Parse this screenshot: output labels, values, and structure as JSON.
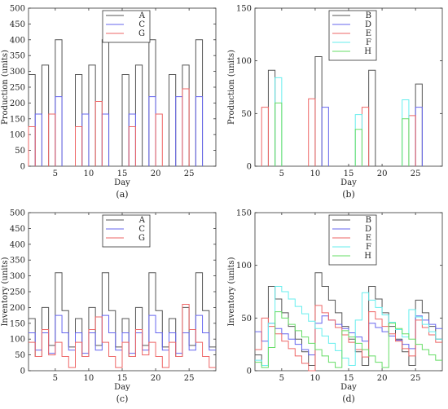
{
  "colors": {
    "A": "#555555",
    "B": "#555555",
    "C": "#6666ee",
    "D": "#6666ee",
    "G": "#ee6666",
    "E": "#ee6666",
    "F": "#66eeee",
    "H": "#66dd66"
  },
  "chart_data": [
    {
      "id": "a",
      "type": "bar",
      "panel_label": "(a)",
      "xlabel": "Day",
      "ylabel": "Production (units)",
      "xlim": [
        1,
        29
      ],
      "ylim": [
        0,
        500
      ],
      "xticks": [
        5,
        10,
        15,
        20,
        25
      ],
      "yticks": [
        0,
        50,
        100,
        150,
        200,
        250,
        300,
        350,
        400,
        450,
        500
      ],
      "legend": "top-center",
      "series": [
        {
          "name": "A",
          "values": [
            290,
            0,
            320,
            0,
            400,
            0,
            0,
            290,
            0,
            320,
            0,
            400,
            0,
            0,
            290,
            0,
            320,
            0,
            400,
            0,
            0,
            290,
            0,
            320,
            0,
            400,
            0,
            0
          ]
        },
        {
          "name": "C",
          "values": [
            0,
            165,
            0,
            0,
            220,
            0,
            0,
            0,
            165,
            0,
            0,
            165,
            0,
            0,
            0,
            165,
            0,
            0,
            220,
            0,
            0,
            0,
            220,
            0,
            0,
            220,
            0,
            0
          ]
        },
        {
          "name": "G",
          "values": [
            125,
            0,
            0,
            165,
            0,
            0,
            0,
            125,
            0,
            0,
            205,
            0,
            0,
            0,
            0,
            125,
            0,
            0,
            0,
            165,
            0,
            0,
            0,
            245,
            0,
            0,
            0,
            0
          ]
        }
      ]
    },
    {
      "id": "b",
      "type": "bar",
      "panel_label": "(b)",
      "xlabel": "Day",
      "ylabel": "Production (units)",
      "xlim": [
        1,
        29
      ],
      "ylim": [
        0,
        150
      ],
      "xticks": [
        5,
        10,
        15,
        20,
        25
      ],
      "yticks": [
        0,
        50,
        100,
        150
      ],
      "legend": "top-center",
      "series": [
        {
          "name": "B",
          "values": [
            0,
            0,
            91,
            0,
            0,
            0,
            0,
            0,
            0,
            104,
            0,
            0,
            0,
            0,
            0,
            0,
            0,
            91,
            0,
            0,
            0,
            0,
            0,
            0,
            78,
            0,
            0,
            0
          ]
        },
        {
          "name": "D",
          "values": [
            0,
            0,
            0,
            0,
            0,
            0,
            0,
            0,
            0,
            0,
            56,
            0,
            0,
            0,
            0,
            0,
            0,
            0,
            0,
            0,
            0,
            0,
            0,
            0,
            56,
            0,
            0,
            0
          ]
        },
        {
          "name": "E",
          "values": [
            0,
            56,
            0,
            0,
            0,
            0,
            0,
            0,
            64,
            0,
            0,
            0,
            0,
            0,
            0,
            0,
            56,
            0,
            0,
            0,
            0,
            0,
            0,
            48,
            0,
            0,
            0,
            0
          ]
        },
        {
          "name": "F",
          "values": [
            0,
            0,
            0,
            84,
            0,
            0,
            0,
            0,
            0,
            0,
            0,
            0,
            0,
            0,
            0,
            49,
            0,
            0,
            0,
            0,
            0,
            0,
            63,
            0,
            0,
            0,
            0,
            0
          ]
        },
        {
          "name": "H",
          "values": [
            0,
            0,
            0,
            60,
            0,
            0,
            0,
            0,
            0,
            0,
            0,
            0,
            0,
            0,
            0,
            35,
            0,
            0,
            0,
            0,
            0,
            0,
            45,
            0,
            0,
            0,
            0,
            0
          ]
        }
      ]
    },
    {
      "id": "c",
      "type": "line",
      "panel_label": "(c)",
      "xlabel": "Day",
      "ylabel": "Inventory (units)",
      "xlim": [
        1,
        29
      ],
      "ylim": [
        0,
        500
      ],
      "xticks": [
        5,
        10,
        15,
        20,
        25
      ],
      "yticks": [
        0,
        50,
        100,
        150,
        200,
        250,
        300,
        350,
        400,
        450,
        500
      ],
      "legend": "top-center",
      "series": [
        {
          "name": "A",
          "values": [
            165,
            45,
            200,
            80,
            310,
            190,
            75,
            165,
            45,
            200,
            80,
            310,
            190,
            75,
            165,
            45,
            200,
            80,
            310,
            190,
            75,
            165,
            45,
            200,
            80,
            310,
            190,
            75
          ]
        },
        {
          "name": "C",
          "values": [
            120,
            65,
            120,
            55,
            175,
            120,
            65,
            120,
            55,
            120,
            65,
            175,
            120,
            65,
            120,
            55,
            120,
            65,
            175,
            120,
            65,
            120,
            55,
            120,
            65,
            175,
            120,
            65
          ]
        },
        {
          "name": "G",
          "values": [
            90,
            45,
            130,
            50,
            90,
            45,
            10,
            90,
            45,
            130,
            170,
            90,
            45,
            10,
            90,
            45,
            130,
            50,
            90,
            45,
            10,
            90,
            45,
            210,
            130,
            90,
            45,
            10
          ]
        }
      ]
    },
    {
      "id": "d",
      "type": "line",
      "panel_label": "(d)",
      "xlabel": "Day",
      "ylabel": "Inventory (units)",
      "xlim": [
        1,
        29
      ],
      "ylim": [
        0,
        150
      ],
      "xticks": [
        5,
        10,
        15,
        20,
        25
      ],
      "yticks": [
        0,
        50,
        100,
        150
      ],
      "legend": "top-center",
      "series": [
        {
          "name": "B",
          "values": [
            15,
            5,
            80,
            68,
            55,
            42,
            30,
            18,
            5,
            93,
            80,
            67,
            55,
            42,
            30,
            18,
            5,
            80,
            68,
            55,
            42,
            30,
            18,
            5,
            67,
            55,
            42,
            30
          ]
        },
        {
          "name": "D",
          "values": [
            37,
            28,
            45,
            40,
            35,
            30,
            25,
            20,
            15,
            45,
            52,
            48,
            44,
            40,
            36,
            32,
            28,
            45,
            41,
            37,
            33,
            29,
            25,
            21,
            52,
            48,
            44,
            40
          ]
        },
        {
          "name": "E",
          "values": [
            20,
            50,
            42,
            35,
            28,
            21,
            14,
            7,
            0,
            62,
            55,
            48,
            41,
            34,
            27,
            20,
            13,
            56,
            49,
            42,
            35,
            28,
            21,
            14,
            48,
            41,
            34,
            27
          ]
        },
        {
          "name": "F",
          "values": [
            10,
            5,
            45,
            80,
            75,
            68,
            61,
            54,
            47,
            40,
            33,
            26,
            19,
            12,
            5,
            48,
            74,
            67,
            60,
            53,
            46,
            39,
            32,
            58,
            51,
            44,
            37,
            30
          ]
        },
        {
          "name": "H",
          "values": [
            8,
            3,
            22,
            56,
            50,
            44,
            38,
            32,
            26,
            20,
            14,
            8,
            3,
            38,
            32,
            26,
            20,
            14,
            8,
            3,
            45,
            40,
            35,
            30,
            25,
            20,
            15,
            10
          ]
        }
      ]
    }
  ]
}
